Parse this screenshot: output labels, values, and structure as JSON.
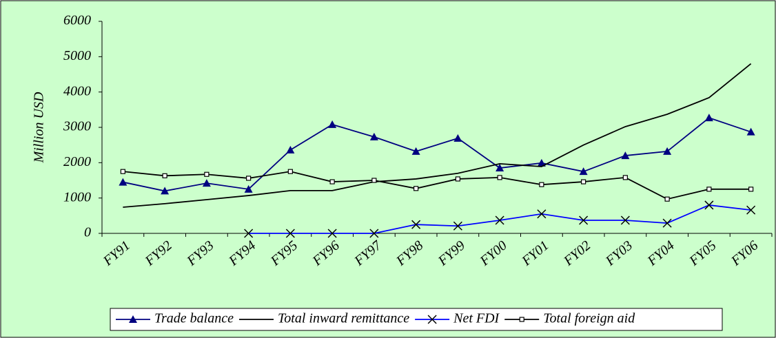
{
  "chart_data": {
    "type": "line",
    "y_label": "Million USD",
    "categories": [
      "FY91",
      "FY92",
      "FY93",
      "FY94",
      "FY95",
      "FY96",
      "FY97",
      "FY98",
      "FY99",
      "FY00",
      "FY01",
      "FY02",
      "FY03",
      "FY04",
      "FY05",
      "FY06"
    ],
    "series": [
      {
        "name": "Trade balance",
        "color": "#000080",
        "marker": "triangle",
        "values": [
          1450,
          1200,
          1420,
          1250,
          2360,
          3080,
          2730,
          2320,
          2690,
          1850,
          1990,
          1750,
          2200,
          2320,
          3270,
          2870
        ]
      },
      {
        "name": "Total inward remittance",
        "color": "#000000",
        "marker": "none",
        "values": [
          740,
          840,
          955,
          1070,
          1210,
          1210,
          1460,
          1540,
          1700,
          1970,
          1890,
          2500,
          3020,
          3370,
          3840,
          4800
        ]
      },
      {
        "name": "Net FDI",
        "color": "#0000ff",
        "marker": "x",
        "values": [
          null,
          null,
          null,
          0,
          0,
          0,
          0,
          250,
          210,
          370,
          550,
          370,
          370,
          290,
          800,
          660
        ]
      },
      {
        "name": "Total foreign aid",
        "color": "#000000",
        "marker": "square",
        "values": [
          1750,
          1630,
          1670,
          1560,
          1750,
          1460,
          1500,
          1270,
          1540,
          1580,
          1380,
          1460,
          1580,
          970,
          1250,
          1250
        ]
      }
    ],
    "ylim": [
      0,
      6000
    ],
    "yticks": [
      0,
      1000,
      2000,
      3000,
      4000,
      5000,
      6000
    ],
    "background": "#ccffcc",
    "legend": "bottom"
  }
}
